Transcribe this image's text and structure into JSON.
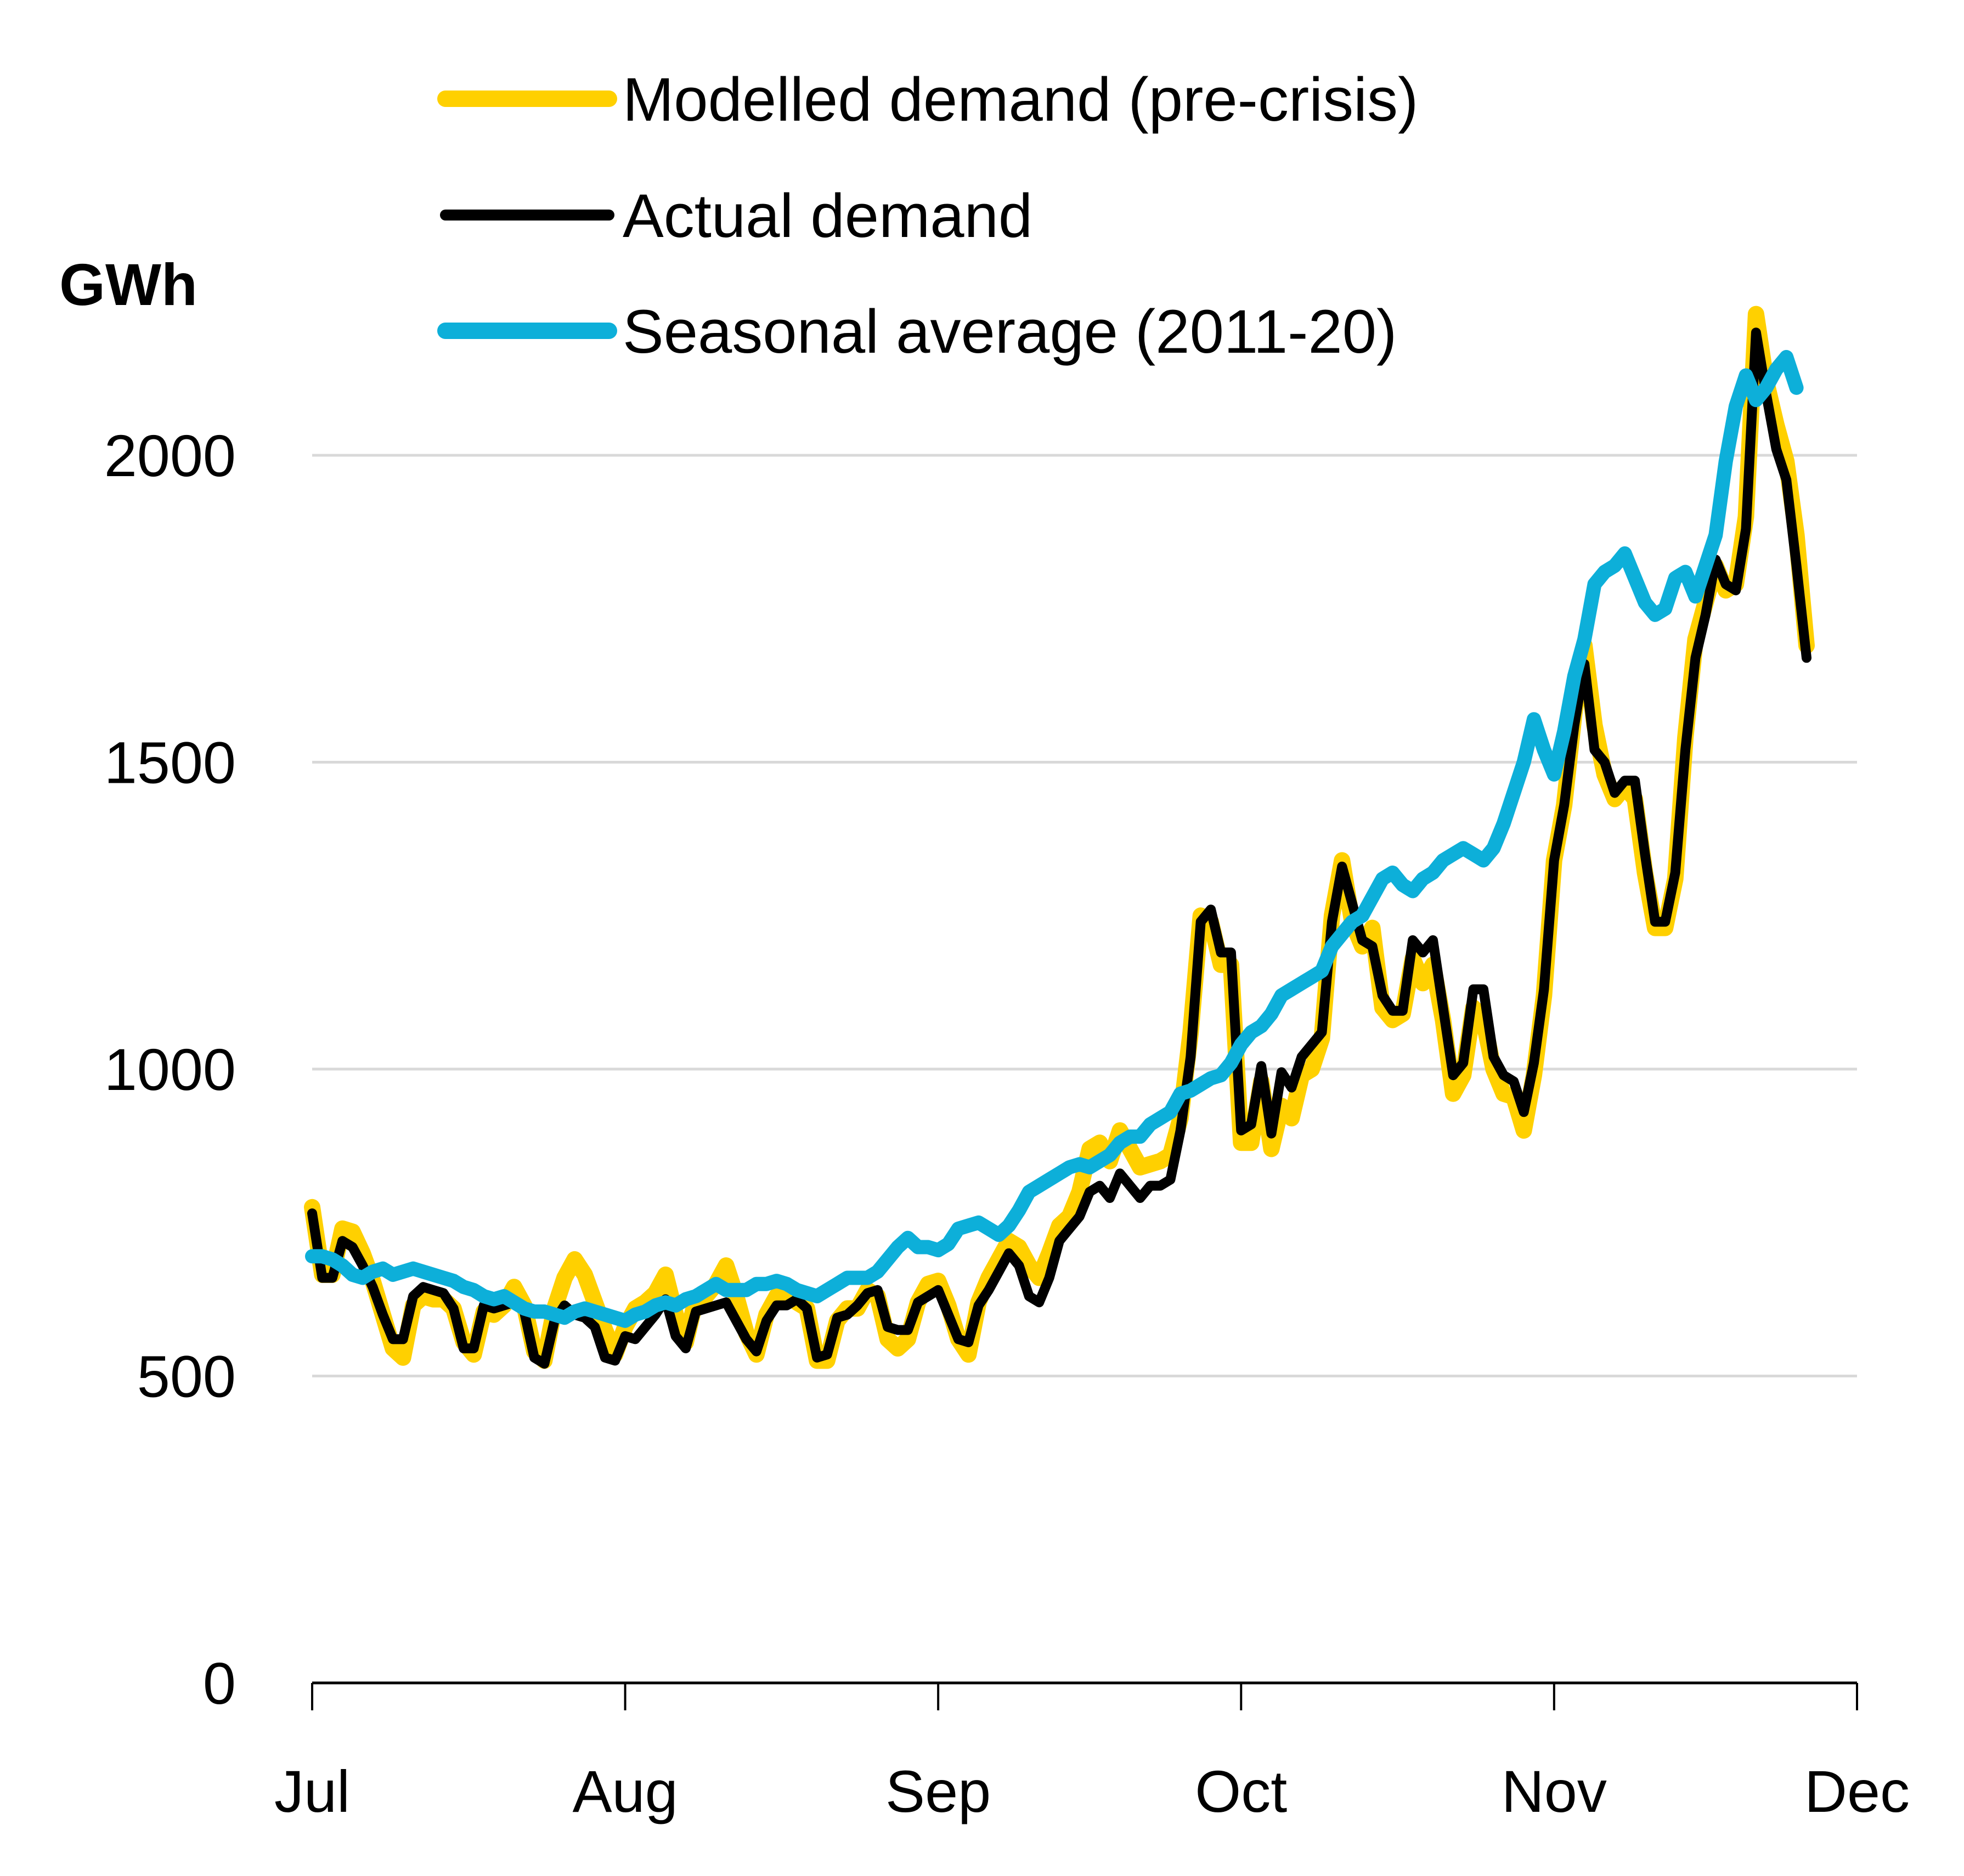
{
  "chart_data": {
    "type": "line",
    "title": "",
    "xlabel": "",
    "ylabel": "GWh",
    "ylim": [
      0,
      2000
    ],
    "yticks": [
      0,
      500,
      1000,
      1500,
      2000
    ],
    "ytick_labels": [
      "0",
      "500",
      "1000",
      "1500",
      "2000"
    ],
    "grid": true,
    "x_start": "Jul 1",
    "x_unit": "day",
    "x_range_days": [
      0,
      153
    ],
    "xticks_days": [
      0,
      31,
      62,
      92,
      123,
      153
    ],
    "xtick_labels": [
      "Jul",
      "Aug",
      "Sep",
      "Oct",
      "Nov",
      "Dec"
    ],
    "legend_position": "top",
    "series": [
      {
        "name": "Modelled demand (pre-crisis)",
        "color": "#FFD000",
        "values": [
          775,
          665,
          665,
          740,
          735,
          700,
          655,
          600,
          545,
          530,
          615,
          630,
          625,
          625,
          610,
          555,
          535,
          605,
          600,
          615,
          645,
          615,
          540,
          525,
          610,
          660,
          690,
          665,
          620,
          575,
          535,
          580,
          610,
          620,
          635,
          665,
          600,
          555,
          625,
          630,
          650,
          680,
          630,
          570,
          535,
          600,
          630,
          635,
          620,
          610,
          525,
          525,
          590,
          610,
          610,
          640,
          630,
          560,
          545,
          560,
          620,
          650,
          655,
          615,
          560,
          535,
          620,
          660,
          690,
          720,
          710,
          680,
          660,
          700,
          745,
          760,
          800,
          870,
          880,
          850,
          900,
          870,
          840,
          845,
          850,
          860,
          920,
          1060,
          1250,
          1240,
          1170,
          1170,
          880,
          880,
          980,
          870,
          940,
          920,
          990,
          1000,
          1050,
          1250,
          1340,
          1240,
          1200,
          1230,
          1100,
          1080,
          1090,
          1180,
          1140,
          1170,
          1080,
          960,
          990,
          1100,
          1080,
          1000,
          960,
          955,
          900,
          990,
          1120,
          1340,
          1430,
          1580,
          1690,
          1560,
          1480,
          1440,
          1460,
          1440,
          1320,
          1230,
          1230,
          1310,
          1540,
          1700,
          1760,
          1820,
          1780,
          1790,
          1900,
          2230,
          2120,
          2050,
          1990,
          1870,
          1690
        ]
      },
      {
        "name": "Actual demand",
        "color": "#000000",
        "values": [
          765,
          660,
          660,
          720,
          710,
          680,
          645,
          600,
          560,
          560,
          630,
          645,
          640,
          635,
          610,
          545,
          545,
          615,
          610,
          615,
          620,
          605,
          530,
          520,
          590,
          615,
          600,
          595,
          580,
          530,
          525,
          565,
          560,
          580,
          600,
          625,
          565,
          545,
          605,
          610,
          615,
          620,
          590,
          560,
          540,
          590,
          615,
          615,
          625,
          610,
          530,
          535,
          595,
          600,
          615,
          635,
          640,
          580,
          575,
          575,
          620,
          630,
          640,
          600,
          560,
          555,
          615,
          640,
          670,
          700,
          680,
          630,
          620,
          660,
          720,
          740,
          760,
          800,
          810,
          790,
          830,
          810,
          790,
          810,
          810,
          820,
          900,
          1020,
          1240,
          1260,
          1190,
          1190,
          900,
          910,
          1005,
          895,
          995,
          970,
          1020,
          1040,
          1060,
          1240,
          1330,
          1270,
          1210,
          1200,
          1120,
          1095,
          1095,
          1210,
          1190,
          1210,
          1100,
          990,
          1010,
          1130,
          1130,
          1020,
          990,
          980,
          930,
          1010,
          1130,
          1340,
          1430,
          1560,
          1660,
          1520,
          1500,
          1450,
          1470,
          1470,
          1350,
          1240,
          1240,
          1320,
          1520,
          1670,
          1740,
          1830,
          1790,
          1780,
          1880,
          2200,
          2100,
          2010,
          1960,
          1820,
          1670
        ]
      },
      {
        "name": "Seasonal average (2011-20)",
        "color": "#0DAFD9",
        "values": [
          695,
          695,
          690,
          680,
          665,
          660,
          670,
          675,
          665,
          670,
          675,
          670,
          665,
          660,
          655,
          645,
          640,
          630,
          625,
          630,
          620,
          610,
          605,
          605,
          600,
          595,
          605,
          610,
          605,
          600,
          595,
          590,
          600,
          605,
          615,
          620,
          615,
          625,
          630,
          640,
          650,
          640,
          640,
          640,
          650,
          650,
          655,
          650,
          640,
          635,
          630,
          640,
          650,
          660,
          660,
          660,
          670,
          690,
          710,
          725,
          710,
          710,
          705,
          715,
          740,
          745,
          750,
          740,
          730,
          745,
          770,
          800,
          810,
          820,
          830,
          840,
          845,
          840,
          850,
          860,
          880,
          890,
          890,
          910,
          920,
          930,
          960,
          965,
          975,
          985,
          990,
          1010,
          1040,
          1060,
          1070,
          1090,
          1120,
          1130,
          1140,
          1150,
          1160,
          1200,
          1220,
          1240,
          1250,
          1280,
          1310,
          1320,
          1300,
          1290,
          1310,
          1320,
          1340,
          1350,
          1360,
          1350,
          1340,
          1360,
          1400,
          1450,
          1500,
          1570,
          1520,
          1480,
          1550,
          1640,
          1700,
          1790,
          1810,
          1820,
          1840,
          1800,
          1760,
          1740,
          1750,
          1800,
          1810,
          1770,
          1820,
          1870,
          1990,
          2080,
          2130,
          2090,
          2110,
          2140,
          2160,
          2110
        ]
      }
    ]
  }
}
